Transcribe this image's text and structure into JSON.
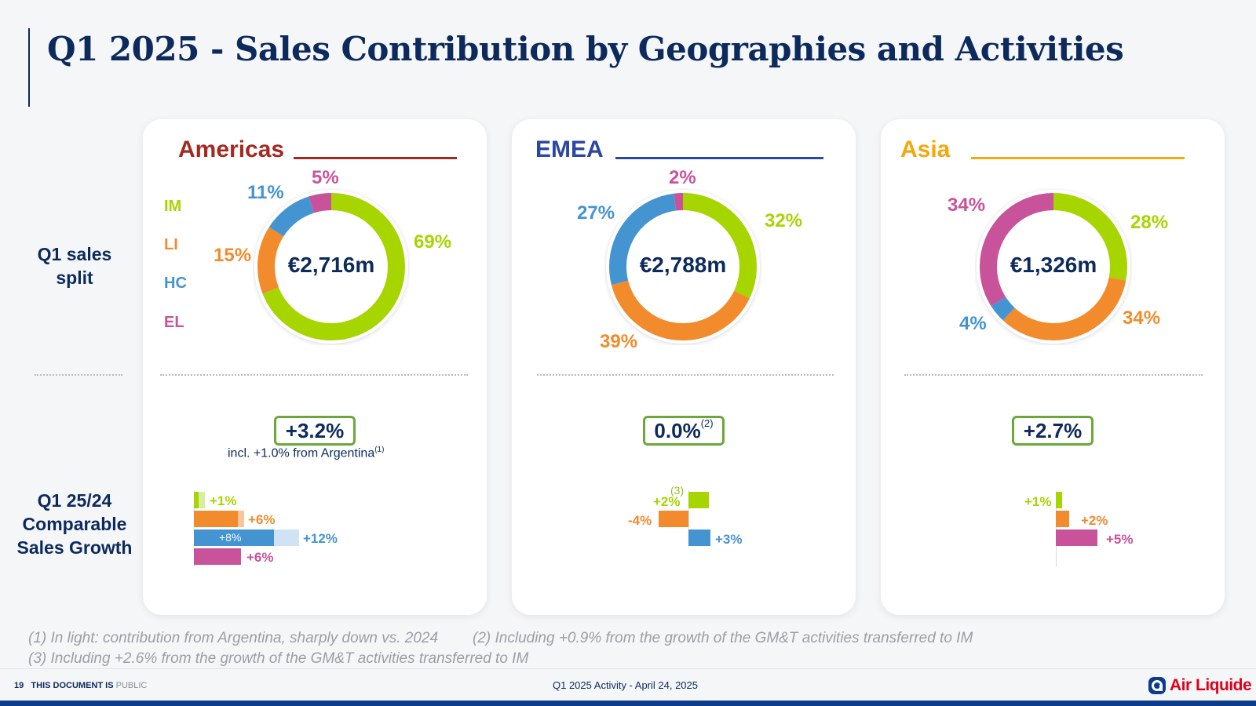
{
  "title": "Q1 2025 - Sales Contribution by Geographies and Activities",
  "row_labels": {
    "sales_split": "Q1 sales split",
    "growth": "Q1 25/24 Comparable Sales Growth"
  },
  "legend": {
    "im": "IM",
    "li": "LI",
    "hc": "HC",
    "el": "EL"
  },
  "colors": {
    "im": "#a6d500",
    "li": "#f28b2c",
    "hc": "#4594d2",
    "el": "#c9539b",
    "navy": "#0d2a5c",
    "americas": "#a32a21",
    "emea": "#2a47a1",
    "asia": "#f5a80a",
    "box": "#6aa83a"
  },
  "americas": {
    "name": "Americas",
    "total": "€2,716m",
    "pct": {
      "im": "69%",
      "li": "15%",
      "hc": "11%",
      "el": "5%"
    },
    "growth": "+3.2%",
    "growth_note": "incl. +1.0% from Argentina",
    "growth_note_ref": "(1)",
    "bars": {
      "im": "+1%",
      "li": "+6%",
      "hc_inner": "+8%",
      "hc": "+12%",
      "el": "+6%"
    }
  },
  "emea": {
    "name": "EMEA",
    "total": "€2,788m",
    "pct": {
      "im": "32%",
      "li": "39%",
      "hc": "27%",
      "el": "2%"
    },
    "growth": "0.0%",
    "growth_ref": "(2)",
    "bars": {
      "im": "+2%",
      "im_ref": "(3)",
      "li": "-4%",
      "hc": "+3%"
    }
  },
  "asia": {
    "name": "Asia",
    "total": "€1,326m",
    "pct": {
      "im": "28%",
      "li": "34%",
      "hc": "4%",
      "el": "34%"
    },
    "growth": "+2.7%",
    "bars": {
      "im": "+1%",
      "li": "+2%",
      "el": "+5%"
    }
  },
  "chart_data": [
    {
      "type": "pie",
      "title": "Americas",
      "center_label": "€2,716m",
      "categories": [
        "IM",
        "LI",
        "HC",
        "EL"
      ],
      "values": [
        69,
        15,
        11,
        5
      ]
    },
    {
      "type": "pie",
      "title": "EMEA",
      "center_label": "€2,788m",
      "categories": [
        "IM",
        "LI",
        "HC",
        "EL"
      ],
      "values": [
        32,
        39,
        27,
        2
      ]
    },
    {
      "type": "pie",
      "title": "Asia",
      "center_label": "€1,326m",
      "categories": [
        "IM",
        "LI",
        "HC",
        "EL"
      ],
      "values": [
        28,
        34,
        4,
        34
      ]
    },
    {
      "type": "bar",
      "title": "Americas growth",
      "categories": [
        "IM",
        "LI",
        "HC",
        "EL"
      ],
      "values": [
        1,
        6,
        12,
        6
      ],
      "excl_argentina": [
        1,
        6,
        8,
        6
      ]
    },
    {
      "type": "bar",
      "title": "EMEA growth",
      "categories": [
        "IM",
        "LI",
        "HC"
      ],
      "values": [
        2,
        -4,
        3
      ]
    },
    {
      "type": "bar",
      "title": "Asia growth",
      "categories": [
        "IM",
        "LI",
        "EL"
      ],
      "values": [
        1,
        2,
        5
      ]
    }
  ],
  "footnotes": {
    "f1": "(1) In light: contribution from Argentina, sharply down vs. 2024",
    "f2": "(2) Including +0.9% from the growth of the GM&T activities transferred to IM",
    "f3": "(3) Including +2.6% from the growth of the GM&T activities transferred to IM"
  },
  "footer": {
    "page": "19",
    "doc_label": "THIS DOCUMENT IS",
    "classification": "PUBLIC",
    "center": "Q1 2025 Activity  - April 24, 2025",
    "logo_text": "Air Liquide"
  }
}
